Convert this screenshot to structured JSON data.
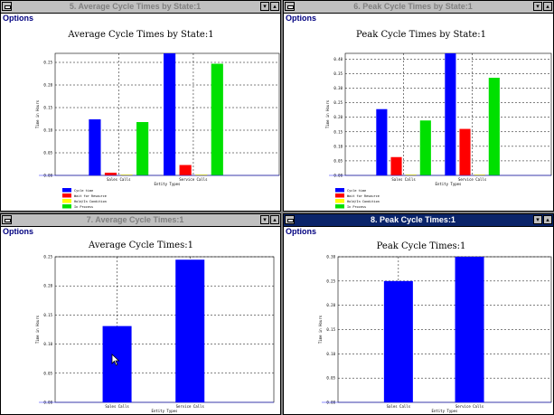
{
  "colors": {
    "blue": "#0000ff",
    "red": "#ff0000",
    "yellow": "#ffff00",
    "green": "#00e000",
    "active_title": "#0a246a"
  },
  "windows": [
    {
      "title": "5. Average Cycle Times by State:1",
      "menu": "Options",
      "chart_title": "Average Cycle Times by State:1",
      "ylabel": "Time in Hours",
      "xlabel": "Entity Types",
      "categories": [
        "Sales Calls",
        "Service Calls"
      ],
      "yticks": [
        "0.00",
        "0.05",
        "0.10",
        "0.15",
        "0.20",
        "0.25"
      ],
      "legend": [
        "Cycle time",
        "Wait for Resource",
        "Hold/In Condition",
        "In Process"
      ]
    },
    {
      "title": "6. Peak Cycle Times by State:1",
      "menu": "Options",
      "chart_title": "Peak Cycle Times by State:1",
      "ylabel": "Time in Hours",
      "xlabel": "Entity Types",
      "categories": [
        "Sales Calls",
        "Service Calls"
      ],
      "yticks": [
        "0.00",
        "0.05",
        "0.10",
        "0.15",
        "0.20",
        "0.25",
        "0.30",
        "0.35",
        "0.40"
      ],
      "legend": [
        "Cycle time",
        "Wait for Resource",
        "Hold/In Condition",
        "In Process"
      ]
    },
    {
      "title": "7. Average Cycle Times:1",
      "menu": "Options",
      "chart_title": "Average Cycle Times:1",
      "ylabel": "Time in Hours",
      "xlabel": "Entity Types",
      "categories": [
        "Sales Calls",
        "Service Calls"
      ],
      "yticks": [
        "0.00",
        "0.05",
        "0.10",
        "0.15",
        "0.20",
        "0.25"
      ]
    },
    {
      "title": "8. Peak Cycle Times:1",
      "menu": "Options",
      "chart_title": "Peak Cycle Times:1",
      "ylabel": "Time in Hours",
      "xlabel": "Entity Types",
      "categories": [
        "Sales Calls",
        "Service Calls"
      ],
      "yticks": [
        "0.00",
        "0.05",
        "0.10",
        "0.15",
        "0.20",
        "0.25",
        "0.30"
      ]
    }
  ],
  "chart_data": [
    {
      "type": "bar",
      "title": "Average Cycle Times by State:1",
      "xlabel": "Entity Types",
      "ylabel": "Time in Hours",
      "categories": [
        "Sales Calls",
        "Service Calls"
      ],
      "ylim": [
        0,
        0.27
      ],
      "legend_position": "bottom-left",
      "series": [
        {
          "name": "Cycle time",
          "color": "#0000ff",
          "values": [
            0.124,
            0.27
          ]
        },
        {
          "name": "Wait for Resource",
          "color": "#ff0000",
          "values": [
            0.006,
            0.023
          ]
        },
        {
          "name": "Hold/In Condition",
          "color": "#ffff00",
          "values": [
            0,
            0
          ]
        },
        {
          "name": "In Process",
          "color": "#00e000",
          "values": [
            0.118,
            0.247
          ]
        }
      ]
    },
    {
      "type": "bar",
      "title": "Peak Cycle Times by State:1",
      "xlabel": "Entity Types",
      "ylabel": "Time in Hours",
      "categories": [
        "Sales Calls",
        "Service Calls"
      ],
      "ylim": [
        0,
        0.42
      ],
      "legend_position": "bottom-left",
      "series": [
        {
          "name": "Cycle time",
          "color": "#0000ff",
          "values": [
            0.228,
            0.42
          ]
        },
        {
          "name": "Wait for Resource",
          "color": "#ff0000",
          "values": [
            0.063,
            0.16
          ]
        },
        {
          "name": "Hold/In Condition",
          "color": "#ffff00",
          "values": [
            0,
            0
          ]
        },
        {
          "name": "In Process",
          "color": "#00e000",
          "values": [
            0.189,
            0.336
          ]
        }
      ]
    },
    {
      "type": "bar",
      "title": "Average Cycle Times:1",
      "xlabel": "Entity Types",
      "ylabel": "Time in Hours",
      "categories": [
        "Sales Calls",
        "Service Calls"
      ],
      "ylim": [
        0,
        0.25
      ],
      "series": [
        {
          "color": "#0000ff",
          "values": [
            0.131,
            0.245
          ]
        }
      ]
    },
    {
      "type": "bar",
      "title": "Peak Cycle Times:1",
      "xlabel": "Entity Types",
      "ylabel": "Time in Hours",
      "categories": [
        "Sales Calls",
        "Service Calls"
      ],
      "ylim": [
        0,
        0.3
      ],
      "series": [
        {
          "color": "#0000ff",
          "values": [
            0.25,
            0.3
          ]
        }
      ]
    }
  ]
}
